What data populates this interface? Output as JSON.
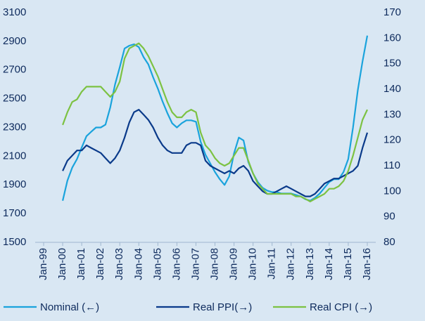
{
  "chart_data": {
    "type": "line",
    "x": [
      "2000-01",
      "2000-04",
      "2000-07",
      "2000-10",
      "2001-01",
      "2001-04",
      "2001-07",
      "2001-10",
      "2002-01",
      "2002-04",
      "2002-07",
      "2002-10",
      "2003-01",
      "2003-04",
      "2003-07",
      "2003-10",
      "2004-01",
      "2004-04",
      "2004-07",
      "2004-10",
      "2005-01",
      "2005-04",
      "2005-07",
      "2005-10",
      "2006-01",
      "2006-04",
      "2006-07",
      "2006-10",
      "2007-01",
      "2007-04",
      "2007-07",
      "2007-10",
      "2008-01",
      "2008-04",
      "2008-07",
      "2008-10",
      "2009-01",
      "2009-04",
      "2009-07",
      "2009-10",
      "2010-01",
      "2010-04",
      "2010-07",
      "2010-10",
      "2011-01",
      "2011-04",
      "2011-07",
      "2011-10",
      "2012-01",
      "2012-04",
      "2012-07",
      "2012-10",
      "2013-01",
      "2013-04",
      "2013-07",
      "2013-10",
      "2014-01",
      "2014-04",
      "2014-07",
      "2014-10",
      "2015-01",
      "2015-04",
      "2015-07",
      "2015-10",
      "2016-01"
    ],
    "series": [
      {
        "name": "Nominal (←)",
        "color": "#1aa3dc",
        "axis": "y",
        "values": [
          1790,
          1930,
          2020,
          2080,
          2160,
          2240,
          2270,
          2300,
          2300,
          2320,
          2440,
          2600,
          2720,
          2850,
          2870,
          2880,
          2860,
          2790,
          2740,
          2650,
          2570,
          2480,
          2400,
          2330,
          2300,
          2330,
          2350,
          2350,
          2340,
          2200,
          2110,
          2050,
          1990,
          1940,
          1900,
          1960,
          2120,
          2230,
          2210,
          2060,
          1980,
          1920,
          1880,
          1860,
          1850,
          1850,
          1840,
          1840,
          1840,
          1830,
          1820,
          1800,
          1790,
          1810,
          1840,
          1880,
          1920,
          1940,
          1940,
          1990,
          2080,
          2300,
          2560,
          2760,
          2940
        ]
      },
      {
        "name": "Real PPI(→)",
        "color": "#0a3a8a",
        "axis": "y2",
        "values": [
          108,
          112,
          114,
          116,
          116,
          118,
          117,
          116,
          115,
          113,
          111,
          113,
          116,
          121,
          127,
          131,
          132,
          130,
          128,
          125,
          121,
          118,
          116,
          115,
          115,
          115,
          118,
          119,
          119,
          118,
          112,
          110,
          109,
          108,
          107,
          108,
          107,
          109,
          110,
          108,
          104,
          102,
          100,
          99,
          99,
          100,
          101,
          102,
          101,
          100,
          99,
          98,
          98,
          99,
          101,
          103,
          104,
          105,
          105,
          106,
          107,
          108,
          110,
          117,
          123
        ]
      },
      {
        "name": "Real CPI (→)",
        "color": "#7cc242",
        "axis": "y2",
        "values": [
          126,
          131,
          135,
          136,
          139,
          141,
          141,
          141,
          141,
          139,
          137,
          139,
          143,
          152,
          156,
          157,
          158,
          156,
          153,
          149,
          145,
          140,
          135,
          131,
          129,
          129,
          131,
          132,
          131,
          123,
          118,
          116,
          113,
          111,
          110,
          111,
          114,
          117,
          117,
          112,
          107,
          103,
          101,
          99,
          99,
          99,
          99,
          99,
          99,
          98,
          98,
          97,
          96,
          97,
          98,
          99,
          101,
          101,
          102,
          104,
          108,
          114,
          121,
          128,
          132
        ]
      }
    ],
    "xlim": [
      "1999-01",
      "2016-01"
    ],
    "xticks": [
      {
        "value": "1999-01",
        "label": "Jan-99"
      },
      {
        "value": "2000-01",
        "label": "Jan-00"
      },
      {
        "value": "2001-01",
        "label": "Jan-01"
      },
      {
        "value": "2002-01",
        "label": "Jan-02"
      },
      {
        "value": "2003-01",
        "label": "Jan-03"
      },
      {
        "value": "2004-01",
        "label": "Jan-04"
      },
      {
        "value": "2005-01",
        "label": "Jan-05"
      },
      {
        "value": "2006-01",
        "label": "Jan-06"
      },
      {
        "value": "2007-01",
        "label": "Jan-07"
      },
      {
        "value": "2008-01",
        "label": "Jan-08"
      },
      {
        "value": "2009-01",
        "label": "Jan-09"
      },
      {
        "value": "2010-01",
        "label": "Jan-10"
      },
      {
        "value": "2011-01",
        "label": "Jan-11"
      },
      {
        "value": "2012-01",
        "label": "Jan-12"
      },
      {
        "value": "2013-01",
        "label": "Jan-13"
      },
      {
        "value": "2014-01",
        "label": "Jan-14"
      },
      {
        "value": "2015-01",
        "label": "Jan-15"
      },
      {
        "value": "2016-01",
        "label": "Jan-16"
      }
    ],
    "ylim": [
      1500,
      3100
    ],
    "yticks": [
      1500,
      1700,
      1900,
      2100,
      2300,
      2500,
      2700,
      2900,
      3100
    ],
    "y2lim": [
      80,
      170
    ],
    "y2ticks": [
      80,
      90,
      100,
      110,
      120,
      130,
      140,
      150,
      160,
      170
    ],
    "legend": "bottom"
  }
}
